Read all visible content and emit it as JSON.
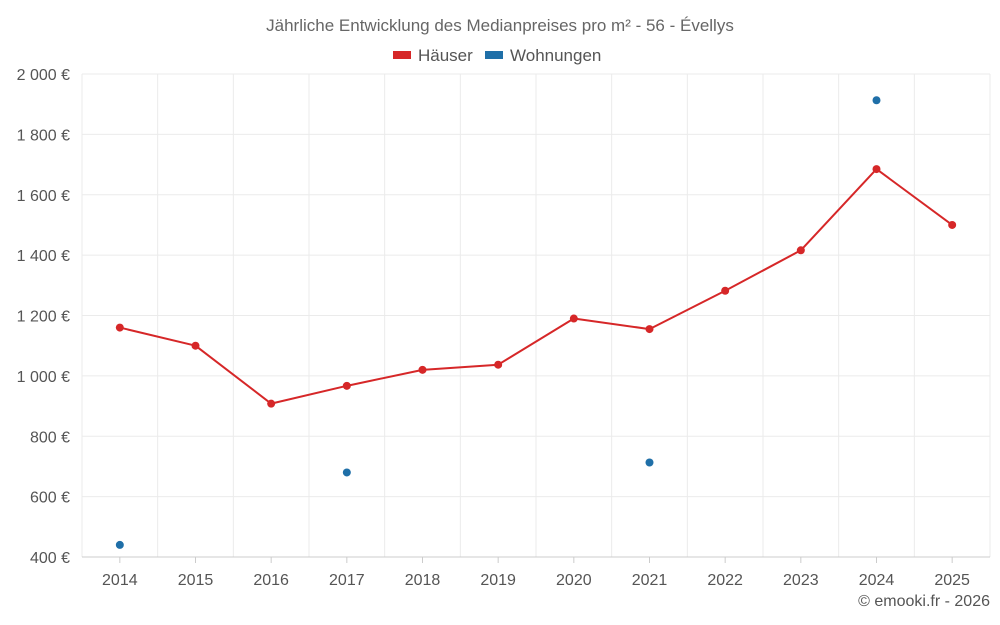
{
  "chart_data": {
    "type": "line",
    "title": "Jährliche Entwicklung des Medianpreises pro m² - 56 - Évellys",
    "categories": [
      "2014",
      "2015",
      "2016",
      "2017",
      "2018",
      "2019",
      "2020",
      "2021",
      "2022",
      "2023",
      "2024",
      "2025"
    ],
    "y_ticks": [
      "400 €",
      "600 €",
      "800 €",
      "1 000 €",
      "1 200 €",
      "1 400 €",
      "1 600 €",
      "1 800 €",
      "2 000 €"
    ],
    "ylim": [
      400,
      2000
    ],
    "legend_position": "top-center",
    "series": [
      {
        "name": "Häuser",
        "color": "#d62728",
        "show_line": true,
        "values": [
          1160,
          1100,
          908,
          967,
          1020,
          1037,
          1190,
          1155,
          1282,
          1416,
          1685,
          1500
        ]
      },
      {
        "name": "Wohnungen",
        "color": "#1f6fa8",
        "show_line": false,
        "values": [
          440,
          null,
          null,
          680,
          null,
          null,
          null,
          713,
          null,
          null,
          1913,
          null
        ]
      }
    ]
  },
  "credit": "© emooki.fr - 2026"
}
